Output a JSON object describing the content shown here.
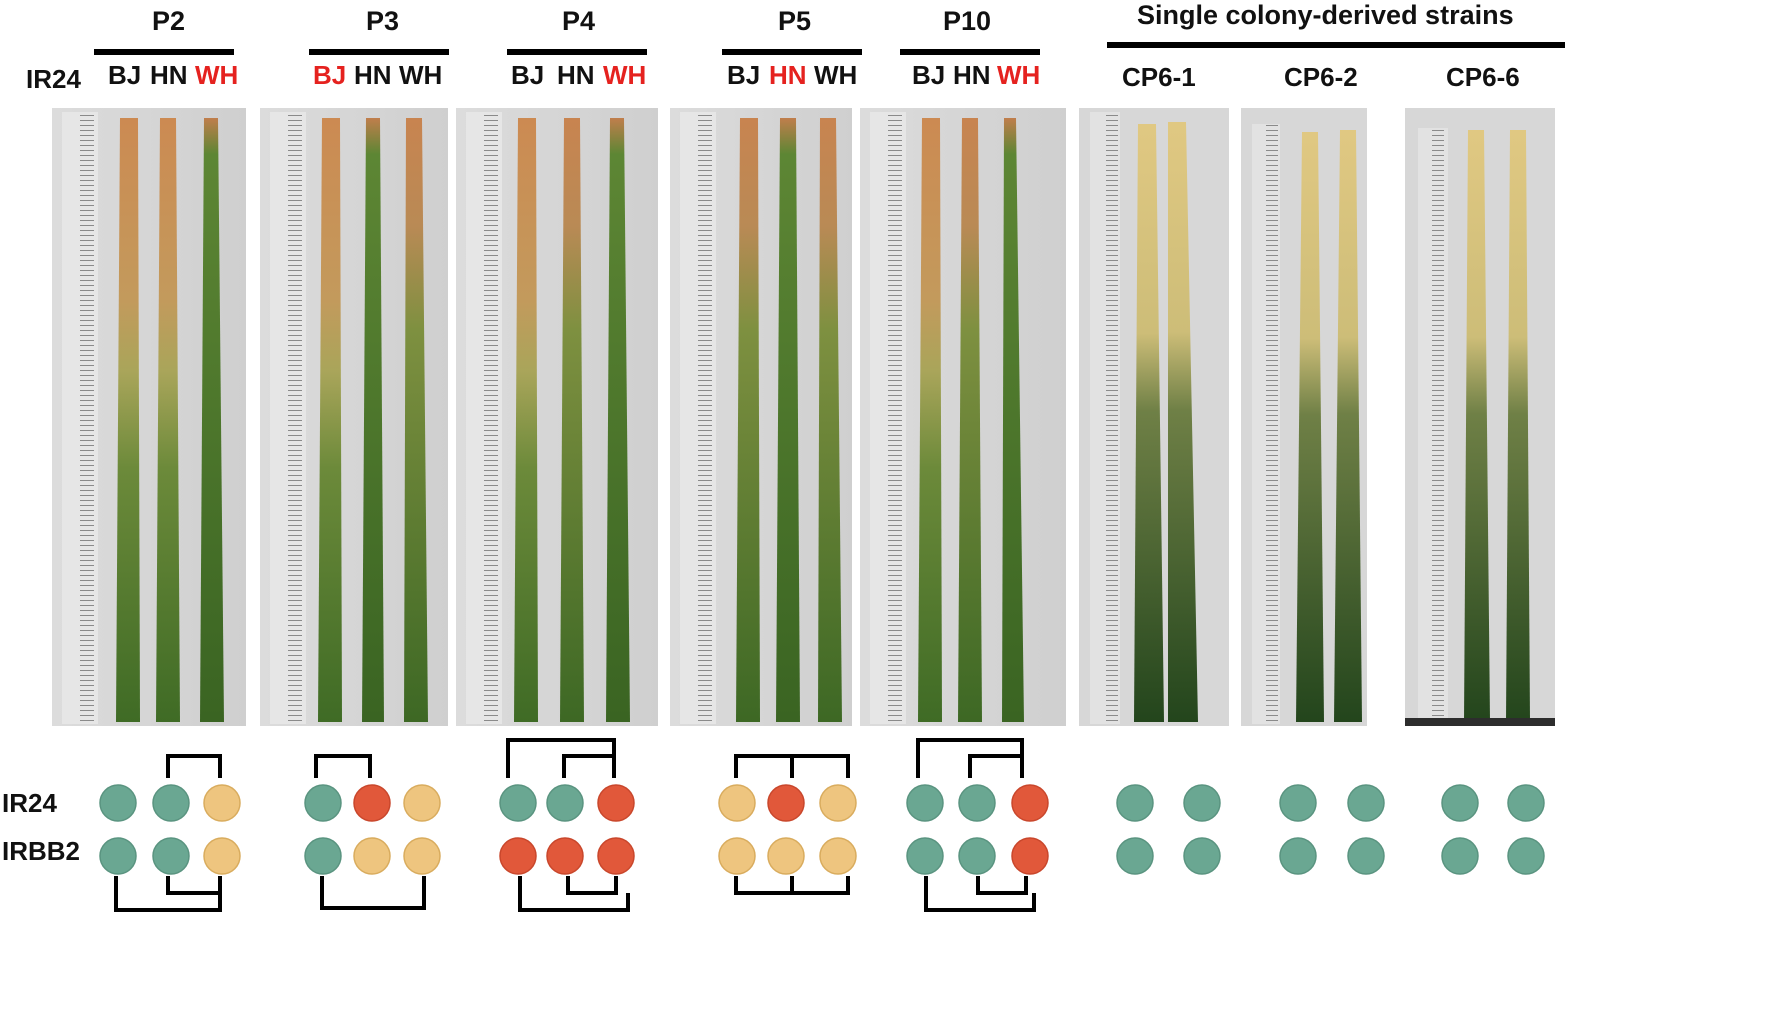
{
  "figure": {
    "row_label_top": "IR24",
    "row_labels_bottom": [
      "IR24",
      "IRBB2"
    ],
    "single_colony_title": "Single colony-derived strains",
    "colors": {
      "green_dot": "#6aa792",
      "tan_dot": "#eec57f",
      "red_dot": "#e1583a",
      "highlight_text": "#e5221f"
    },
    "passages": [
      {
        "name": "P2",
        "strains": [
          "BJ",
          "HN",
          "WH"
        ],
        "highlighted": "WH"
      },
      {
        "name": "P3",
        "strains": [
          "BJ",
          "HN",
          "WH"
        ],
        "highlighted": "BJ"
      },
      {
        "name": "P4",
        "strains": [
          "BJ",
          "HN",
          "WH"
        ],
        "highlighted": "WH"
      },
      {
        "name": "P5",
        "strains": [
          "BJ",
          "HN",
          "WH"
        ],
        "highlighted": "HN"
      },
      {
        "name": "P10",
        "strains": [
          "BJ",
          "HN",
          "WH"
        ],
        "highlighted": "WH"
      }
    ],
    "single_colony_strains": [
      "CP6-1",
      "CP6-2",
      "CP6-6"
    ],
    "dots": {
      "passages": [
        {
          "IR24": [
            "green",
            "green",
            "tan"
          ],
          "IRBB2": [
            "green",
            "green",
            "tan"
          ]
        },
        {
          "IR24": [
            "green",
            "red",
            "tan"
          ],
          "IRBB2": [
            "green",
            "tan",
            "tan"
          ]
        },
        {
          "IR24": [
            "green",
            "green",
            "red"
          ],
          "IRBB2": [
            "red",
            "red",
            "red"
          ]
        },
        {
          "IR24": [
            "tan",
            "red",
            "tan"
          ],
          "IRBB2": [
            "tan",
            "tan",
            "tan"
          ]
        },
        {
          "IR24": [
            "green",
            "green",
            "red"
          ],
          "IRBB2": [
            "green",
            "green",
            "red"
          ]
        }
      ],
      "single_colony": [
        {
          "IR24": [
            "green",
            "green"
          ],
          "IRBB2": [
            "green",
            "green"
          ]
        },
        {
          "IR24": [
            "green",
            "green"
          ],
          "IRBB2": [
            "green",
            "green"
          ]
        },
        {
          "IR24": [
            "green",
            "green"
          ],
          "IRBB2": [
            "green",
            "green"
          ]
        }
      ]
    }
  }
}
